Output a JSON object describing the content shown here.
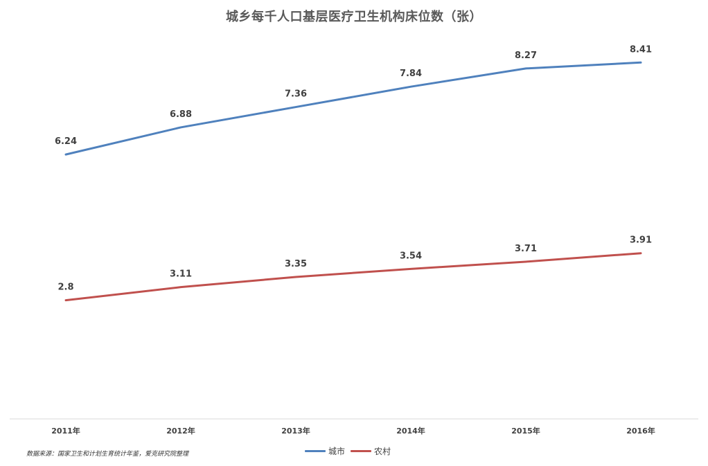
{
  "title": "城乡每千人口基层医疗卫生机构床位数（张）",
  "source_note": "数据来源：国家卫生和计划生育统计年鉴，爱克研究院整理",
  "chart_data": {
    "type": "line",
    "title": "城乡每千人口基层医疗卫生机构床位数（张）",
    "categories": [
      "2011年",
      "2012年",
      "2013年",
      "2014年",
      "2015年",
      "2016年"
    ],
    "series": [
      {
        "name": "城市",
        "color": "#4f81bd",
        "values": [
          6.24,
          6.88,
          7.36,
          7.84,
          8.27,
          8.41
        ],
        "labels": [
          "6.24",
          "6.88",
          "7.36",
          "7.84",
          "8.27",
          "8.41"
        ]
      },
      {
        "name": "农村",
        "color": "#c0504d",
        "values": [
          2.8,
          3.11,
          3.35,
          3.54,
          3.71,
          3.91
        ],
        "labels": [
          "2.8",
          "3.11",
          "3.35",
          "3.54",
          "3.71",
          "3.91"
        ]
      }
    ],
    "xlabel": "",
    "ylabel": "",
    "ylim": [
      0,
      9.2
    ],
    "grid": false,
    "legend_position": "bottom",
    "show_y_axis": false,
    "data_labels": true
  }
}
